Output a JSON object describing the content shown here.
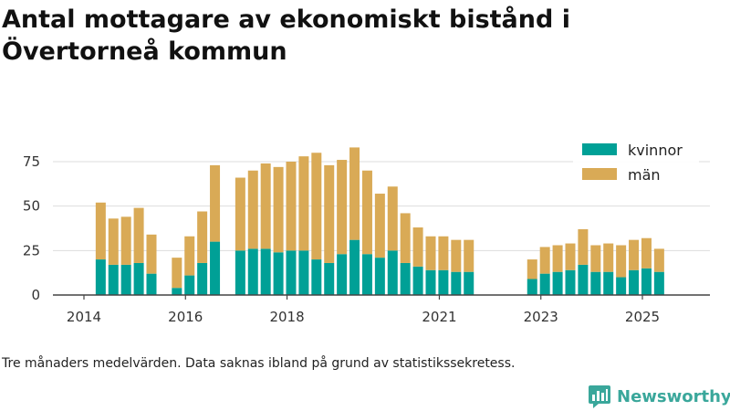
{
  "title": "Antal mottagare av ekonomiskt bistånd i Övertorneå kommun",
  "caption": "Tre månaders medelvärden. Data saknas ibland på grund av statistikssekretess.",
  "brand": {
    "name": "Newsworthy"
  },
  "colors": {
    "kvinnor": "#00a096",
    "man": "#d9aa56",
    "grid": "#dddddd",
    "axis": "#444444",
    "brand": "#3aa79b"
  },
  "chart_data": {
    "type": "bar",
    "stacked": true,
    "title": "Antal mottagare av ekonomiskt bistånd i Övertorneå kommun",
    "xlabel": "",
    "ylabel": "",
    "ylim": [
      0,
      90
    ],
    "yticks": [
      0,
      25,
      50,
      75
    ],
    "xlim": [
      2013.4,
      2026.2
    ],
    "xticks": [
      {
        "value": 2014.0,
        "label": "2014"
      },
      {
        "value": 2016.0,
        "label": "2016"
      },
      {
        "value": 2018.0,
        "label": "2018"
      },
      {
        "value": 2021.0,
        "label": "2021"
      },
      {
        "value": 2023.0,
        "label": "2023"
      },
      {
        "value": 2025.0,
        "label": "2025"
      }
    ],
    "legend": {
      "position": "top-right",
      "entries": [
        "kvinnor",
        "män"
      ]
    },
    "x": [
      2014.33,
      2014.58,
      2014.83,
      2015.08,
      2015.33,
      2015.83,
      2016.08,
      2016.33,
      2016.58,
      2017.08,
      2017.33,
      2017.58,
      2017.83,
      2018.08,
      2018.33,
      2018.58,
      2018.83,
      2019.08,
      2019.33,
      2019.58,
      2019.83,
      2020.08,
      2020.33,
      2020.58,
      2020.83,
      2021.08,
      2021.33,
      2021.58,
      2022.83,
      2023.08,
      2023.33,
      2023.58,
      2023.83,
      2024.08,
      2024.33,
      2024.58,
      2024.83,
      2025.08,
      2025.33
    ],
    "series": [
      {
        "name": "kvinnor",
        "values": [
          20,
          17,
          17,
          18,
          12,
          4,
          11,
          18,
          30,
          25,
          26,
          26,
          24,
          25,
          25,
          20,
          18,
          23,
          31,
          23,
          21,
          25,
          18,
          16,
          14,
          14,
          13,
          13,
          9,
          12,
          13,
          14,
          17,
          13,
          13,
          10,
          14,
          15,
          13
        ]
      },
      {
        "name": "män",
        "values": [
          32,
          26,
          27,
          31,
          22,
          17,
          22,
          29,
          43,
          41,
          44,
          48,
          48,
          50,
          53,
          60,
          55,
          53,
          52,
          47,
          36,
          36,
          28,
          22,
          19,
          19,
          18,
          18,
          11,
          15,
          15,
          15,
          20,
          15,
          16,
          18,
          17,
          17,
          13
        ]
      }
    ]
  }
}
